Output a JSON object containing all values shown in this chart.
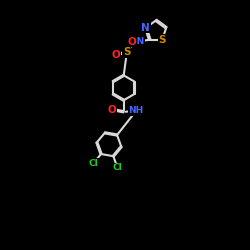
{
  "bg": "#000000",
  "bond_color": "#d8d8d8",
  "bond_lw": 1.5,
  "dbo": 0.055,
  "atom_colors": {
    "N": "#4466ff",
    "O": "#ff2222",
    "S": "#cc8800",
    "Cl": "#22cc22"
  },
  "fs": 7.5,
  "fss": 6.5,
  "xlim": [
    -5.0,
    6.0
  ],
  "ylim": [
    -9.0,
    5.5
  ]
}
